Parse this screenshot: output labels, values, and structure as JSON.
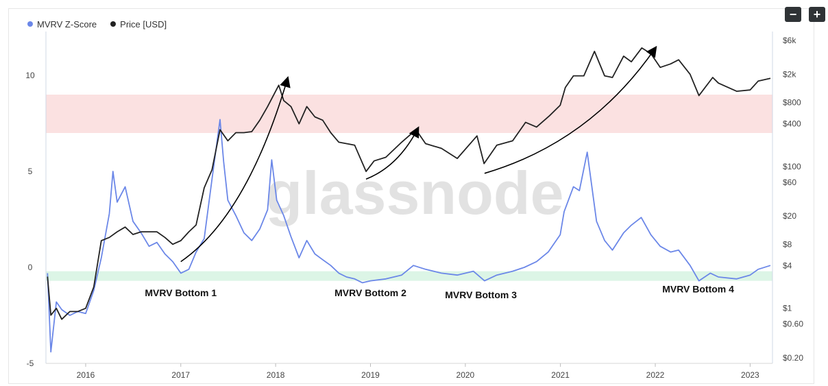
{
  "toolbar": {
    "zoom_out_label": "−",
    "zoom_in_label": "+"
  },
  "legend": [
    {
      "label": "MVRV Z-Score",
      "color": "#6b87e8"
    },
    {
      "label": "Price [USD]",
      "color": "#222222"
    }
  ],
  "watermark": "glassnode",
  "colors": {
    "zscore": "#6b87e8",
    "price": "#222222",
    "red_band": "#fbe1e1",
    "green_band": "#dcf5e6"
  },
  "chart_data": {
    "type": "line",
    "x_axis": {
      "ticks": [
        "2016",
        "2017",
        "2018",
        "2019",
        "2020",
        "2021",
        "2022",
        "2023"
      ],
      "range": [
        "2015-08",
        "2023-03"
      ]
    },
    "y_left": {
      "ticks": [
        "10",
        "5",
        "0",
        "-5"
      ],
      "range": [
        -5,
        12
      ]
    },
    "y_right": {
      "scale": "log",
      "ticks": [
        "$6k",
        "$2k",
        "$800",
        "$400",
        "$100",
        "$60",
        "$20",
        "$8",
        "$4",
        "$1",
        "$0.60",
        "$0.20"
      ],
      "range": [
        0.2,
        7000
      ]
    },
    "bands": [
      {
        "name": "red",
        "from": 7,
        "to": 9
      },
      {
        "name": "green",
        "from": -0.7,
        "to": -0.2
      }
    ],
    "series": [
      {
        "name": "MVRV Z-Score",
        "points": [
          [
            "2015-08-07",
            -0.3
          ],
          [
            "2015-08-20",
            -4.4
          ],
          [
            "2015-09-10",
            -1.8
          ],
          [
            "2015-10-01",
            -2.2
          ],
          [
            "2015-11-01",
            -2.5
          ],
          [
            "2015-12-01",
            -2.3
          ],
          [
            "2016-01-01",
            -2.4
          ],
          [
            "2016-02-01",
            -1.2
          ],
          [
            "2016-03-01",
            0.5
          ],
          [
            "2016-04-01",
            2.8
          ],
          [
            "2016-04-15",
            5.0
          ],
          [
            "2016-05-01",
            3.4
          ],
          [
            "2016-06-01",
            4.2
          ],
          [
            "2016-07-01",
            2.4
          ],
          [
            "2016-08-01",
            1.8
          ],
          [
            "2016-09-01",
            1.1
          ],
          [
            "2016-10-01",
            1.3
          ],
          [
            "2016-11-01",
            0.7
          ],
          [
            "2016-12-01",
            0.3
          ],
          [
            "2017-01-01",
            -0.3
          ],
          [
            "2017-02-01",
            -0.1
          ],
          [
            "2017-03-01",
            0.8
          ],
          [
            "2017-04-01",
            1.5
          ],
          [
            "2017-05-01",
            4.6
          ],
          [
            "2017-06-01",
            7.7
          ],
          [
            "2017-06-15",
            5.5
          ],
          [
            "2017-07-01",
            3.5
          ],
          [
            "2017-08-01",
            2.7
          ],
          [
            "2017-09-01",
            1.8
          ],
          [
            "2017-10-01",
            1.4
          ],
          [
            "2017-11-01",
            2.0
          ],
          [
            "2017-12-01",
            3.0
          ],
          [
            "2017-12-17",
            5.6
          ],
          [
            "2018-01-05",
            3.5
          ],
          [
            "2018-02-01",
            2.7
          ],
          [
            "2018-03-01",
            1.6
          ],
          [
            "2018-04-01",
            0.5
          ],
          [
            "2018-05-01",
            1.4
          ],
          [
            "2018-06-01",
            0.7
          ],
          [
            "2018-07-01",
            0.4
          ],
          [
            "2018-08-01",
            0.1
          ],
          [
            "2018-09-01",
            -0.3
          ],
          [
            "2018-10-01",
            -0.5
          ],
          [
            "2018-11-01",
            -0.6
          ],
          [
            "2018-12-01",
            -0.8
          ],
          [
            "2019-01-01",
            -0.7
          ],
          [
            "2019-03-01",
            -0.6
          ],
          [
            "2019-05-01",
            -0.4
          ],
          [
            "2019-06-15",
            0.1
          ],
          [
            "2019-08-01",
            -0.1
          ],
          [
            "2019-10-01",
            -0.3
          ],
          [
            "2019-12-01",
            -0.4
          ],
          [
            "2020-02-01",
            -0.2
          ],
          [
            "2020-03-15",
            -0.7
          ],
          [
            "2020-05-01",
            -0.4
          ],
          [
            "2020-07-01",
            -0.2
          ],
          [
            "2020-08-15",
            0.0
          ],
          [
            "2020-10-01",
            0.3
          ],
          [
            "2020-11-15",
            0.8
          ],
          [
            "2020-12-31",
            1.7
          ],
          [
            "2021-01-15",
            2.9
          ],
          [
            "2021-02-20",
            4.2
          ],
          [
            "2021-03-15",
            4.0
          ],
          [
            "2021-04-14",
            6.0
          ],
          [
            "2021-05-20",
            2.4
          ],
          [
            "2021-06-20",
            1.4
          ],
          [
            "2021-07-20",
            0.9
          ],
          [
            "2021-09-01",
            1.8
          ],
          [
            "2021-10-01",
            2.2
          ],
          [
            "2021-11-08",
            2.6
          ],
          [
            "2021-12-15",
            1.7
          ],
          [
            "2022-01-20",
            1.1
          ],
          [
            "2022-03-01",
            0.8
          ],
          [
            "2022-04-01",
            0.9
          ],
          [
            "2022-05-15",
            0.1
          ],
          [
            "2022-06-18",
            -0.7
          ],
          [
            "2022-08-01",
            -0.3
          ],
          [
            "2022-09-01",
            -0.5
          ],
          [
            "2022-11-10",
            -0.6
          ],
          [
            "2023-01-01",
            -0.4
          ],
          [
            "2023-02-01",
            -0.1
          ],
          [
            "2023-03-20",
            0.1
          ]
        ]
      },
      {
        "name": "Price [USD]",
        "points": [
          [
            "2015-08-07",
            2.8
          ],
          [
            "2015-08-20",
            0.8
          ],
          [
            "2015-09-10",
            1.0
          ],
          [
            "2015-10-01",
            0.7
          ],
          [
            "2015-11-01",
            0.9
          ],
          [
            "2015-12-01",
            0.9
          ],
          [
            "2016-01-01",
            1.0
          ],
          [
            "2016-02-01",
            2.0
          ],
          [
            "2016-03-01",
            9.0
          ],
          [
            "2016-04-01",
            10.0
          ],
          [
            "2016-05-01",
            12.0
          ],
          [
            "2016-06-01",
            14.0
          ],
          [
            "2016-07-01",
            11.0
          ],
          [
            "2016-08-01",
            12.0
          ],
          [
            "2016-09-01",
            12.0
          ],
          [
            "2016-10-01",
            12.0
          ],
          [
            "2016-11-01",
            10.0
          ],
          [
            "2016-12-01",
            8.0
          ],
          [
            "2017-01-01",
            9.0
          ],
          [
            "2017-02-01",
            12.0
          ],
          [
            "2017-03-01",
            15.0
          ],
          [
            "2017-04-01",
            50.0
          ],
          [
            "2017-05-01",
            90.0
          ],
          [
            "2017-06-01",
            330.0
          ],
          [
            "2017-07-01",
            230.0
          ],
          [
            "2017-08-01",
            300.0
          ],
          [
            "2017-09-01",
            300.0
          ],
          [
            "2017-10-01",
            310.0
          ],
          [
            "2017-11-01",
            450.0
          ],
          [
            "2017-12-01",
            700.0
          ],
          [
            "2018-01-13",
            1400.0
          ],
          [
            "2018-02-01",
            850.0
          ],
          [
            "2018-03-01",
            700.0
          ],
          [
            "2018-04-01",
            400.0
          ],
          [
            "2018-05-01",
            700.0
          ],
          [
            "2018-06-01",
            500.0
          ],
          [
            "2018-07-01",
            450.0
          ],
          [
            "2018-08-01",
            300.0
          ],
          [
            "2018-09-01",
            220.0
          ],
          [
            "2018-10-01",
            210.0
          ],
          [
            "2018-11-01",
            200.0
          ],
          [
            "2018-12-15",
            85.0
          ],
          [
            "2019-01-15",
            120.0
          ],
          [
            "2019-03-01",
            135.0
          ],
          [
            "2019-05-01",
            220.0
          ],
          [
            "2019-06-25",
            330.0
          ],
          [
            "2019-08-01",
            210.0
          ],
          [
            "2019-10-01",
            180.0
          ],
          [
            "2019-12-01",
            130.0
          ],
          [
            "2020-02-15",
            270.0
          ],
          [
            "2020-03-13",
            110.0
          ],
          [
            "2020-05-01",
            200.0
          ],
          [
            "2020-07-01",
            230.0
          ],
          [
            "2020-08-20",
            420.0
          ],
          [
            "2020-10-01",
            360.0
          ],
          [
            "2020-11-20",
            520.0
          ],
          [
            "2020-12-31",
            730.0
          ],
          [
            "2021-01-20",
            1300.0
          ],
          [
            "2021-02-20",
            1900.0
          ],
          [
            "2021-04-01",
            1900.0
          ],
          [
            "2021-05-12",
            4200.0
          ],
          [
            "2021-06-20",
            1900.0
          ],
          [
            "2021-07-20",
            1800.0
          ],
          [
            "2021-09-01",
            3600.0
          ],
          [
            "2021-10-01",
            3000.0
          ],
          [
            "2021-11-10",
            4700.0
          ],
          [
            "2021-12-15",
            3900.0
          ],
          [
            "2022-01-20",
            2500.0
          ],
          [
            "2022-03-01",
            2800.0
          ],
          [
            "2022-04-01",
            3200.0
          ],
          [
            "2022-05-15",
            2000.0
          ],
          [
            "2022-06-18",
            1000.0
          ],
          [
            "2022-08-10",
            1800.0
          ],
          [
            "2022-09-01",
            1500.0
          ],
          [
            "2022-11-10",
            1150.0
          ],
          [
            "2023-01-01",
            1200.0
          ],
          [
            "2023-02-01",
            1600.0
          ],
          [
            "2023-03-20",
            1750.0
          ]
        ]
      }
    ],
    "annotations": [
      {
        "text": "MVRV Bottom 1",
        "x": "2017-01-01",
        "y": -1.5
      },
      {
        "text": "MVRV Bottom 2",
        "x": "2019-01-01",
        "y": -1.5
      },
      {
        "text": "MVRV Bottom 3",
        "x": "2020-03-01",
        "y": -1.6
      },
      {
        "text": "MVRV Bottom 4",
        "x": "2022-06-15",
        "y": -1.3
      }
    ],
    "arrows": [
      {
        "from": [
          "2017-01-01",
          0.3
        ],
        "to": [
          "2018-02-15",
          9.8
        ]
      },
      {
        "from": [
          "2018-12-15",
          4.6
        ],
        "to": [
          "2019-07-01",
          7.2
        ]
      },
      {
        "from": [
          "2020-03-15",
          4.9
        ],
        "to": [
          "2021-12-31",
          11.4
        ]
      }
    ]
  }
}
